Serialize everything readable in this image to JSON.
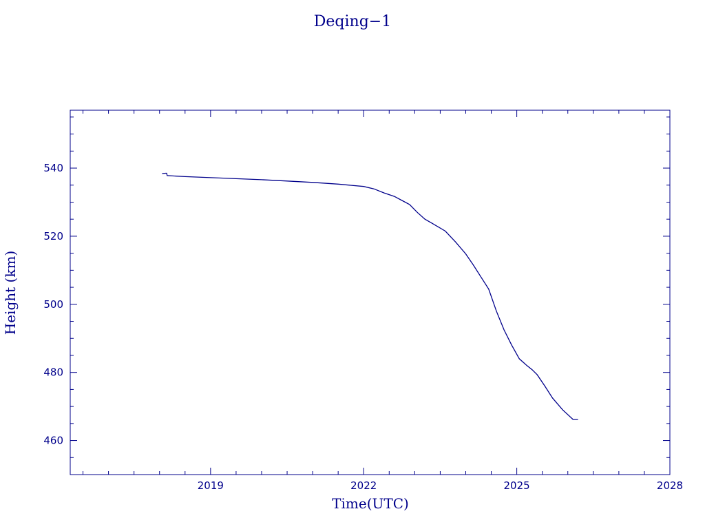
{
  "chart_data": {
    "type": "line",
    "title": "Deqing−1",
    "xlabel": "Time(UTC)",
    "ylabel": "Height (km)",
    "xlim": [
      2016.25,
      2028.0
    ],
    "ylim": [
      450,
      557
    ],
    "x_ticks": [
      2019,
      2022,
      2025,
      2028
    ],
    "x_tick_labels": [
      "2019",
      "2022",
      "2025",
      "2028"
    ],
    "y_ticks": [
      460,
      480,
      500,
      520,
      540
    ],
    "y_tick_labels": [
      "460",
      "480",
      "500",
      "520",
      "540"
    ],
    "x_minor_step": 0.5,
    "y_minor_step": 5,
    "grid": false,
    "legend": "none",
    "color": "#00008b",
    "series": [
      {
        "x": [
          2018.05,
          2018.12,
          2018.14,
          2018.15,
          2018.5,
          2019.0,
          2019.5,
          2020.0,
          2020.5,
          2021.0,
          2021.5,
          2022.0,
          2022.2,
          2022.4,
          2022.6,
          2022.75,
          2022.9,
          2023.05,
          2023.2,
          2023.35,
          2023.6,
          2023.8,
          2024.0,
          2024.15,
          2024.3,
          2024.45,
          2024.6,
          2024.75,
          2024.9,
          2025.05,
          2025.2,
          2025.3,
          2025.4,
          2025.55,
          2025.7,
          2025.9,
          2026.1,
          2026.2
        ],
        "y": [
          538.4,
          538.5,
          538.5,
          537.8,
          537.5,
          537.2,
          536.9,
          536.6,
          536.2,
          535.8,
          535.3,
          534.6,
          533.9,
          532.7,
          531.7,
          530.5,
          529.3,
          527.0,
          525.0,
          523.7,
          521.5,
          518.3,
          514.8,
          511.5,
          508.0,
          504.5,
          498.0,
          492.5,
          488.0,
          484.0,
          482.0,
          480.8,
          479.3,
          476.0,
          472.5,
          469.0,
          466.2,
          466.2
        ]
      }
    ]
  }
}
